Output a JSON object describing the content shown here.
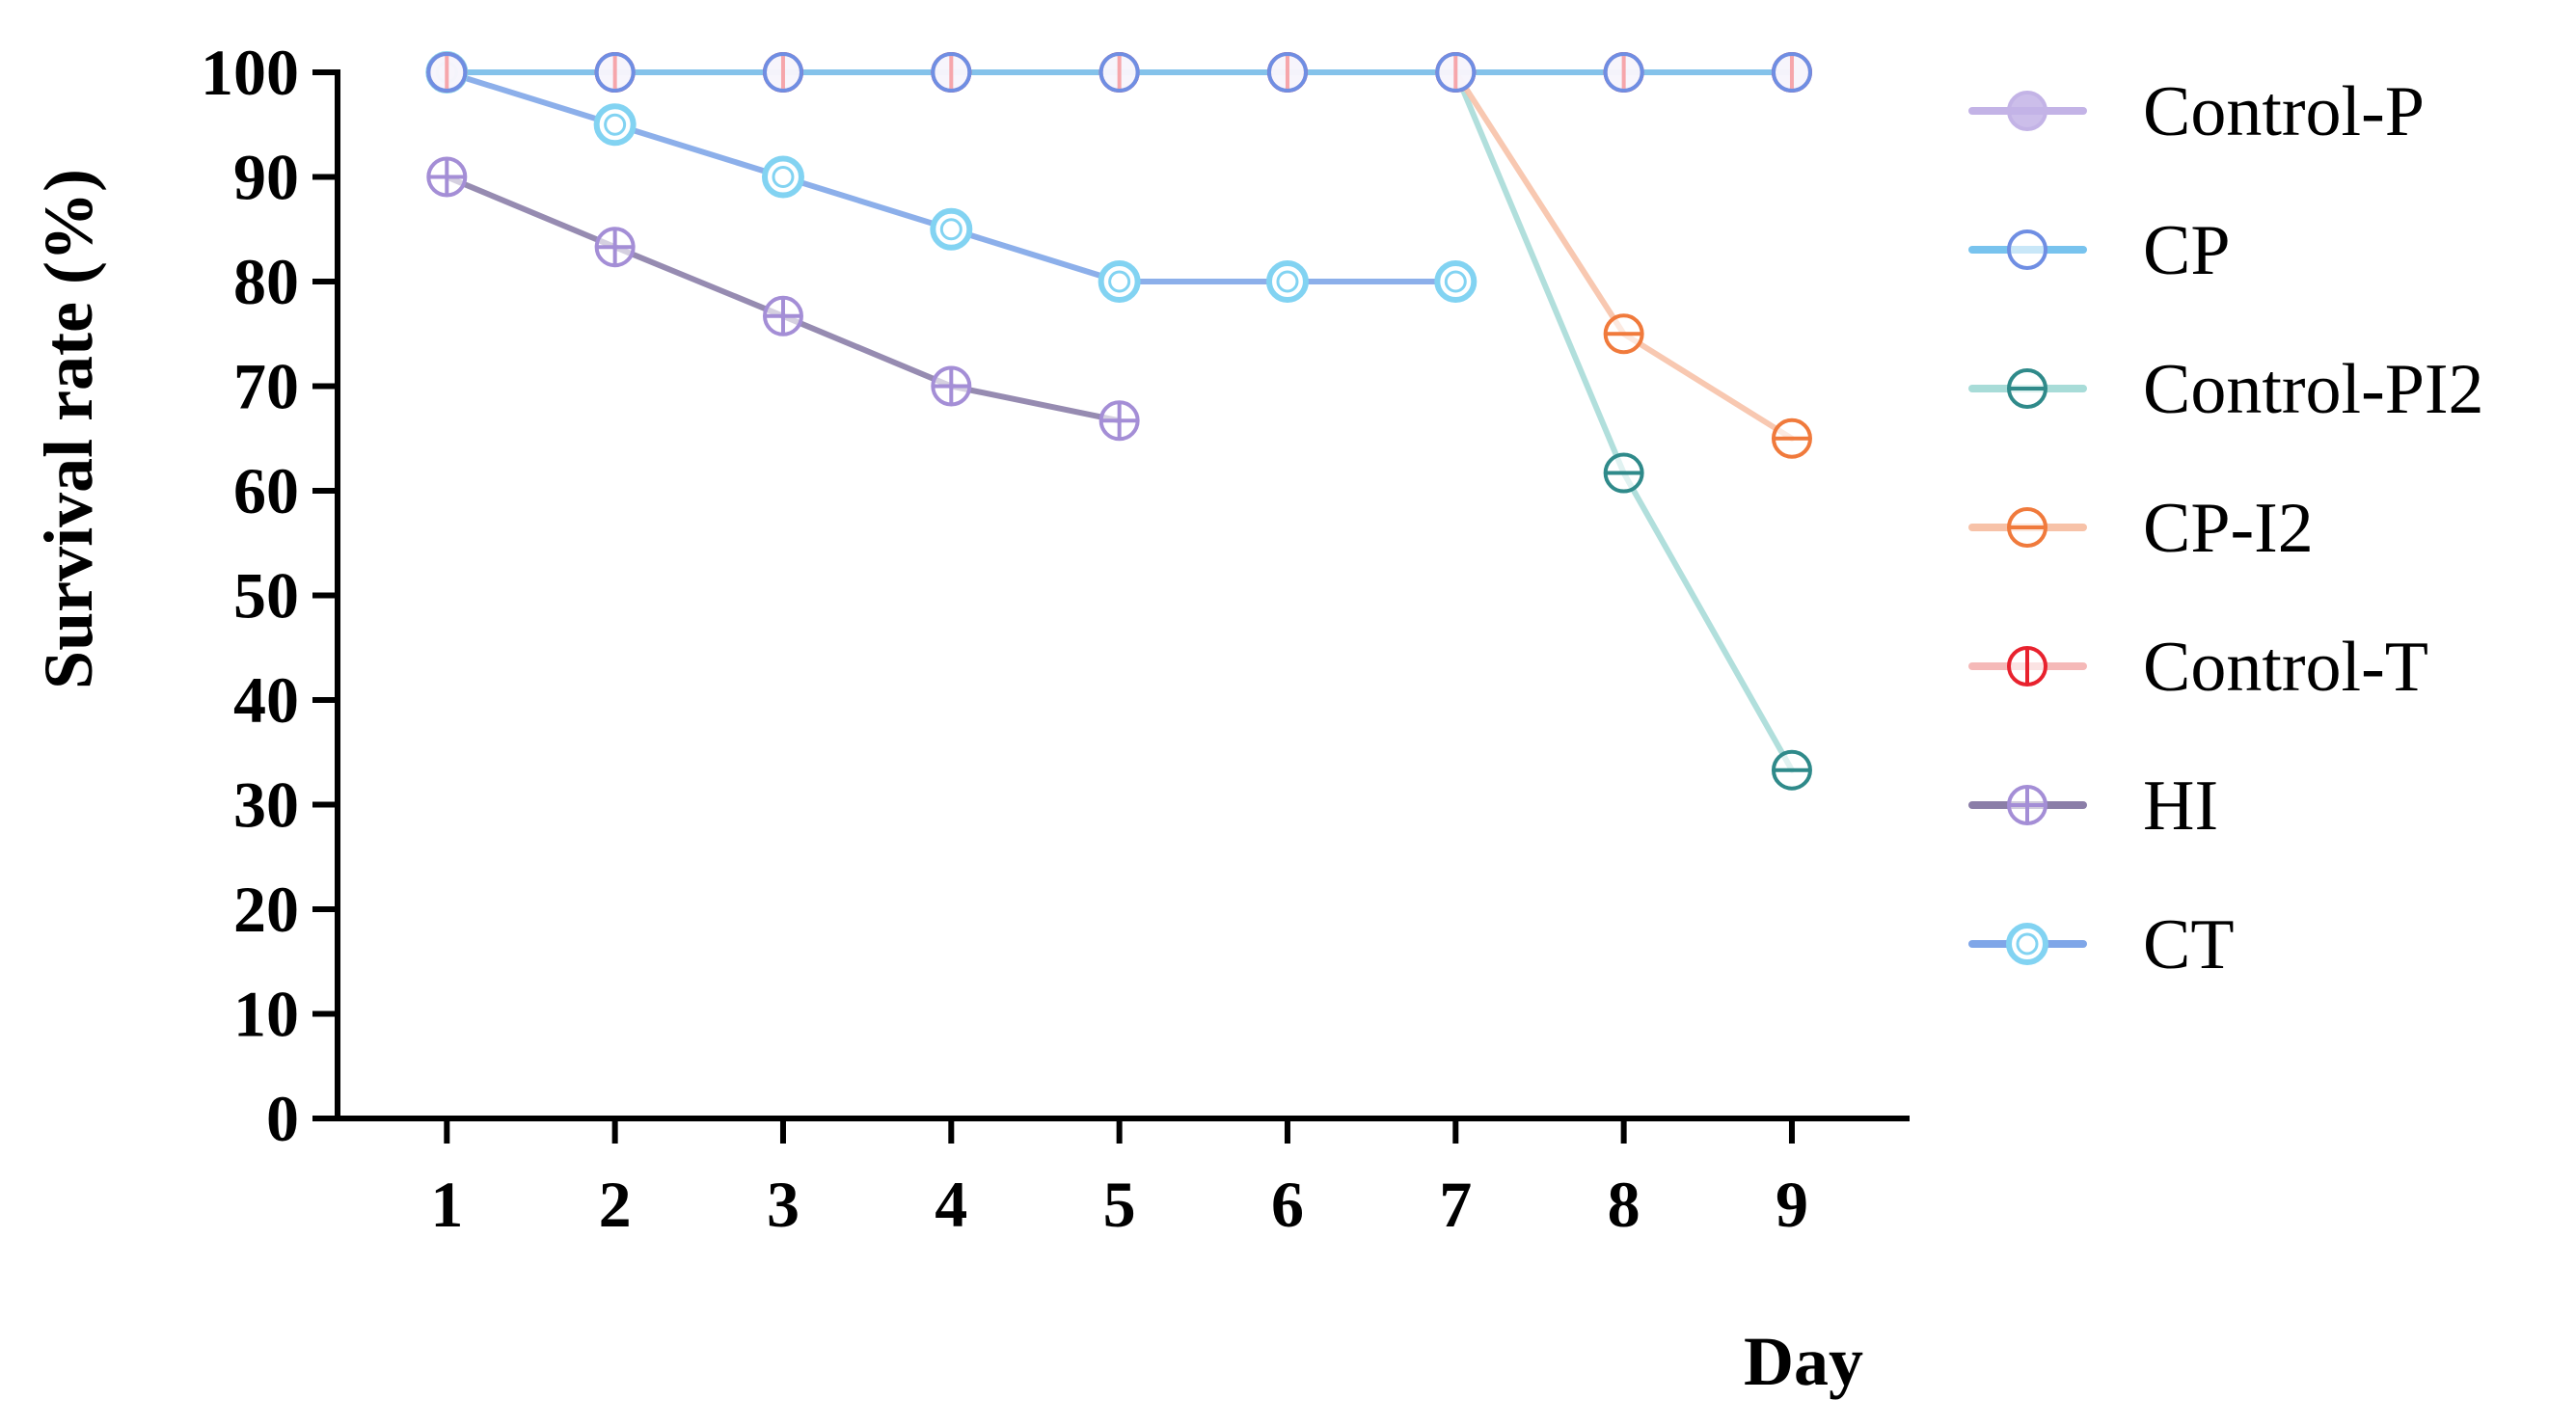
{
  "chart_data": {
    "type": "line",
    "title": "",
    "xlabel": "Day",
    "ylabel": "Survival rate (%)",
    "x": [
      1,
      2,
      3,
      4,
      5,
      6,
      7,
      8,
      9
    ],
    "xlim": [
      0.35,
      9.7
    ],
    "ylim": [
      0,
      100
    ],
    "yticks": [
      0,
      10,
      20,
      30,
      40,
      50,
      60,
      70,
      80,
      90,
      100
    ],
    "legend_position": "right",
    "grid": false,
    "series": [
      {
        "name": "Control-P",
        "color": "#c3b3e6",
        "marker": "circle-filled",
        "points": [
          [
            1,
            100
          ],
          [
            2,
            100
          ],
          [
            3,
            100
          ],
          [
            4,
            100
          ],
          [
            5,
            100
          ],
          [
            6,
            100
          ],
          [
            7,
            100
          ],
          [
            8,
            100
          ],
          [
            9,
            100
          ]
        ]
      },
      {
        "name": "CP",
        "color": "#6f8ee3",
        "line_color": "#78c3ee",
        "marker": "circle-open",
        "points": [
          [
            1,
            100
          ],
          [
            2,
            100
          ],
          [
            3,
            100
          ],
          [
            4,
            100
          ],
          [
            5,
            100
          ],
          [
            6,
            100
          ],
          [
            7,
            100
          ],
          [
            8,
            100
          ],
          [
            9,
            100
          ]
        ]
      },
      {
        "name": "Control-PI2",
        "color": "#2f8a8a",
        "line_color": "#a8dcd8",
        "marker": "circle-hbar",
        "points": [
          [
            7,
            100
          ],
          [
            8,
            61.7
          ],
          [
            9,
            33.3
          ]
        ]
      },
      {
        "name": "CP-I2",
        "color": "#f07a3c",
        "line_color": "#f7c2a8",
        "marker": "circle-hbar",
        "points": [
          [
            7,
            100
          ],
          [
            8,
            75
          ],
          [
            9,
            65
          ]
        ]
      },
      {
        "name": "Control-T",
        "color": "#e8222e",
        "line_color": "#f5b9b8",
        "marker": "circle-vbar",
        "points": [
          [
            1,
            100
          ],
          [
            2,
            100
          ],
          [
            3,
            100
          ],
          [
            4,
            100
          ],
          [
            5,
            100
          ],
          [
            6,
            100
          ],
          [
            7,
            100
          ],
          [
            8,
            100
          ],
          [
            9,
            100
          ]
        ]
      },
      {
        "name": "HI",
        "color": "#a48ed6",
        "line_color": "#8b7ea8",
        "marker": "circle-cross",
        "points": [
          [
            1,
            90
          ],
          [
            2,
            83.3
          ],
          [
            3,
            76.7
          ],
          [
            4,
            70
          ],
          [
            5,
            66.7
          ]
        ]
      },
      {
        "name": "CT",
        "color": "#82d3f2",
        "line_color": "#7fa6e8",
        "marker": "circle-double",
        "points": [
          [
            1,
            100
          ],
          [
            2,
            95
          ],
          [
            3,
            90
          ],
          [
            4,
            85
          ],
          [
            5,
            80
          ],
          [
            6,
            80
          ],
          [
            7,
            80
          ]
        ]
      }
    ]
  }
}
